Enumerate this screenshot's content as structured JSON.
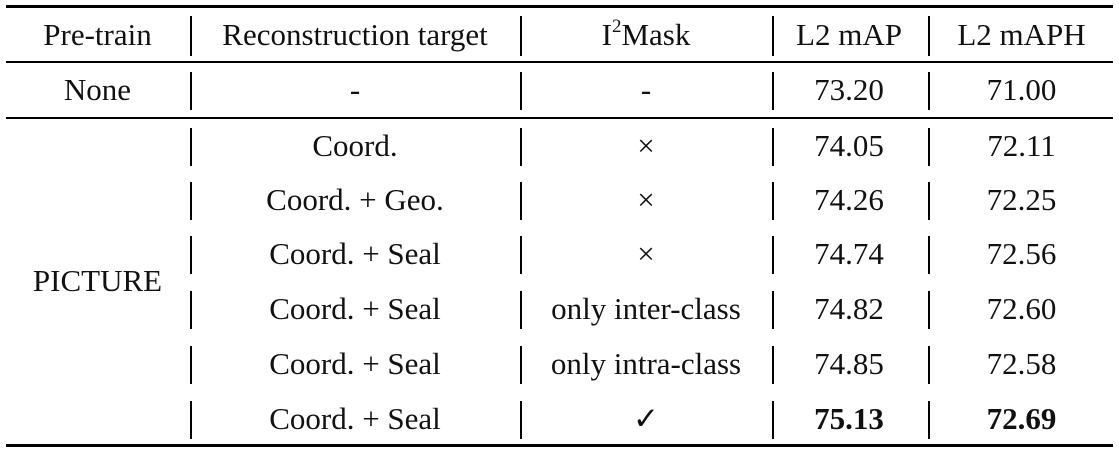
{
  "table": {
    "headers": {
      "pretrain": "Pre-train",
      "target": "Reconstruction target",
      "mask_base": "I",
      "mask_sup": "2",
      "mask_rest": "Mask",
      "map": "L2 mAP",
      "maph": "L2 mAPH"
    },
    "rows": [
      {
        "pretrain": "None",
        "target": "-",
        "mask": "-",
        "map": "73.20",
        "maph": "71.00",
        "bold": false
      },
      {
        "pretrain": "",
        "target": "Coord.",
        "mask": "×",
        "map": "74.05",
        "maph": "72.11",
        "bold": false
      },
      {
        "pretrain": "",
        "target": "Coord. + Geo.",
        "mask": "×",
        "map": "74.26",
        "maph": "72.25",
        "bold": false
      },
      {
        "pretrain": "",
        "target": "Coord. + Seal",
        "mask": "×",
        "map": "74.74",
        "maph": "72.56",
        "bold": false
      },
      {
        "pretrain": "",
        "target": "Coord. + Seal",
        "mask": "only inter-class",
        "map": "74.82",
        "maph": "72.60",
        "bold": false
      },
      {
        "pretrain": "",
        "target": "Coord. + Seal",
        "mask": "only intra-class",
        "map": "74.85",
        "maph": "72.58",
        "bold": false
      },
      {
        "pretrain": "",
        "target": "Coord. + Seal",
        "mask": "✓",
        "map": "75.13",
        "maph": "72.69",
        "bold": true
      }
    ],
    "group_label": "PICTURE"
  }
}
